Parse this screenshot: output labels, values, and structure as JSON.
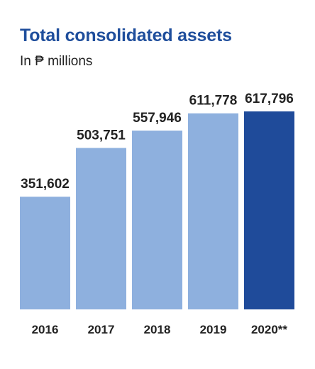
{
  "header": {
    "title": "Total consolidated assets",
    "subtitle": "In ₱ millions"
  },
  "colors": {
    "title": "#1f4e9c",
    "bar_light": "#8eb0de",
    "bar_highlight": "#1f4b9a",
    "label_text": "#222222"
  },
  "chart_data": {
    "type": "bar",
    "title": "Total consolidated assets",
    "subtitle": "In ₱ millions",
    "categories": [
      "2016",
      "2017",
      "2018",
      "2019",
      "2020**"
    ],
    "values": [
      351602,
      503751,
      557946,
      611778,
      617796
    ],
    "value_labels": [
      "351,602",
      "503,751",
      "557,946",
      "611,778",
      "617,796"
    ],
    "highlight_index": 4,
    "xlabel": "",
    "ylabel": "",
    "ylim": [
      0,
      617796
    ],
    "grid": false,
    "legend": "none"
  }
}
